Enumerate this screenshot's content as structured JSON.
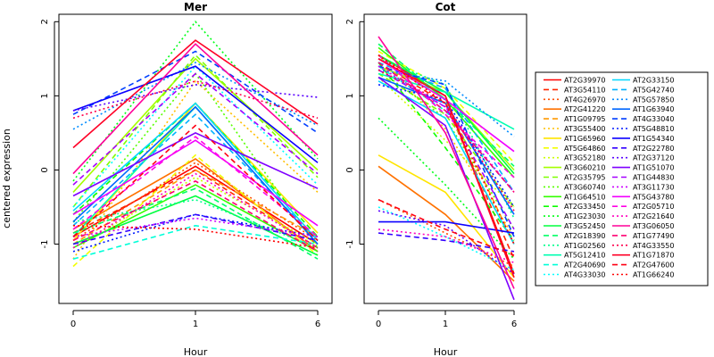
{
  "chart_data": [
    {
      "type": "line",
      "title": "Mer",
      "xlabel": "Hour",
      "ylabel": "centered expression",
      "categories": [
        "0",
        "1",
        "6"
      ],
      "ylim": [
        -1.8,
        2.1
      ],
      "yticks": [
        -1,
        0,
        1,
        2
      ],
      "series": [
        {
          "name": "AT2G39970",
          "values": [
            -0.9,
            0.05,
            -1.0
          ]
        },
        {
          "name": "AT3G54110",
          "values": [
            -0.85,
            0.0,
            -1.05
          ]
        },
        {
          "name": "AT4G26970",
          "values": [
            -0.95,
            0.1,
            -0.95
          ]
        },
        {
          "name": "AT2G41220",
          "values": [
            -0.8,
            0.15,
            -1.1
          ]
        },
        {
          "name": "AT1G09795",
          "values": [
            -1.0,
            0.0,
            -0.9
          ]
        },
        {
          "name": "AT3G55400",
          "values": [
            -1.2,
            1.2,
            -0.3
          ]
        },
        {
          "name": "AT1G65960",
          "values": [
            -0.95,
            0.9,
            -0.85
          ]
        },
        {
          "name": "AT5G64860",
          "values": [
            -1.3,
            0.2,
            -1.15
          ]
        },
        {
          "name": "AT3G52180",
          "values": [
            -1.05,
            -0.1,
            -1.0
          ]
        },
        {
          "name": "AT3G60210",
          "values": [
            -0.3,
            1.5,
            0.0
          ]
        },
        {
          "name": "AT2G35795",
          "values": [
            -0.5,
            1.55,
            -0.1
          ]
        },
        {
          "name": "AT3G60740",
          "values": [
            -0.7,
            1.3,
            -1.05
          ]
        },
        {
          "name": "AT1G64510",
          "values": [
            -1.05,
            -0.2,
            -1.1
          ]
        },
        {
          "name": "AT2G33450",
          "values": [
            -0.6,
            0.9,
            -0.9
          ]
        },
        {
          "name": "AT1G23030",
          "values": [
            -0.15,
            2.0,
            0.15
          ]
        },
        {
          "name": "AT3G52450",
          "values": [
            -1.0,
            -0.35,
            -1.15
          ]
        },
        {
          "name": "AT2G18390",
          "values": [
            -0.85,
            -0.25,
            -1.2
          ]
        },
        {
          "name": "AT1G02560",
          "values": [
            -0.7,
            -0.4,
            -1.05
          ]
        },
        {
          "name": "AT5G12410",
          "values": [
            -0.9,
            0.85,
            -1.0
          ]
        },
        {
          "name": "AT2G40690",
          "values": [
            -1.2,
            -0.75,
            -1.0
          ]
        },
        {
          "name": "AT4G33030",
          "values": [
            -0.5,
            1.4,
            -0.2
          ]
        },
        {
          "name": "AT2G33150",
          "values": [
            -0.55,
            0.9,
            -0.95
          ]
        },
        {
          "name": "AT5G42740",
          "values": [
            -0.75,
            0.75,
            -0.95
          ]
        },
        {
          "name": "AT5G57850",
          "values": [
            0.55,
            1.45,
            0.6
          ]
        },
        {
          "name": "AT1G63940",
          "values": [
            -0.7,
            0.85,
            -1.0
          ]
        },
        {
          "name": "AT4G33040",
          "values": [
            0.75,
            1.6,
            0.5
          ]
        },
        {
          "name": "AT5G48810",
          "values": [
            -1.1,
            -0.6,
            -0.9
          ]
        },
        {
          "name": "AT1G54340",
          "values": [
            0.8,
            1.4,
            0.1
          ]
        },
        {
          "name": "AT2G22780",
          "values": [
            -1.0,
            -0.6,
            -0.95
          ]
        },
        {
          "name": "AT2G37120",
          "values": [
            0.8,
            1.15,
            0.98
          ]
        },
        {
          "name": "AT1G51070",
          "values": [
            -0.35,
            0.5,
            -0.25
          ]
        },
        {
          "name": "AT1G44830",
          "values": [
            -0.2,
            1.3,
            -0.05
          ]
        },
        {
          "name": "AT3G11730",
          "values": [
            -0.9,
            -0.65,
            -0.9
          ]
        },
        {
          "name": "AT5G43780",
          "values": [
            -0.6,
            0.4,
            -0.75
          ]
        },
        {
          "name": "AT2G05710",
          "values": [
            -0.8,
            0.45,
            -0.9
          ]
        },
        {
          "name": "AT2G21640",
          "values": [
            -1.05,
            -0.05,
            -1.05
          ]
        },
        {
          "name": "AT3G06050",
          "values": [
            -0.05,
            1.7,
            0.2
          ]
        },
        {
          "name": "AT1G77490",
          "values": [
            -0.95,
            -0.15,
            -1.1
          ]
        },
        {
          "name": "AT4G33550",
          "values": [
            0.7,
            1.2,
            0.7
          ]
        },
        {
          "name": "AT1G71870",
          "values": [
            0.3,
            1.75,
            0.62
          ]
        },
        {
          "name": "AT2G47600",
          "values": [
            -0.9,
            0.6,
            -0.95
          ]
        },
        {
          "name": "AT1G66240",
          "values": [
            -0.75,
            -0.8,
            -1.05
          ]
        }
      ]
    },
    {
      "type": "line",
      "title": "Cot",
      "xlabel": "Hour",
      "categories": [
        "0",
        "1",
        "6"
      ],
      "ylim": [
        -1.8,
        2.1
      ],
      "yticks": [
        -1,
        0,
        1,
        2
      ],
      "series": [
        {
          "name": "AT2G39970",
          "values": [
            1.55,
            1.0,
            -1.4
          ]
        },
        {
          "name": "AT3G54110",
          "values": [
            1.45,
            0.9,
            -1.2
          ]
        },
        {
          "name": "AT4G26970",
          "values": [
            -0.4,
            -0.85,
            -1.3
          ]
        },
        {
          "name": "AT2G41220",
          "values": [
            0.05,
            -0.6,
            -1.5
          ]
        },
        {
          "name": "AT1G09795",
          "values": [
            1.5,
            0.95,
            -1.0
          ]
        },
        {
          "name": "AT3G55400",
          "values": [
            1.55,
            0.55,
            -0.9
          ]
        },
        {
          "name": "AT1G65960",
          "values": [
            0.2,
            -0.3,
            -1.45
          ]
        },
        {
          "name": "AT5G64860",
          "values": [
            1.6,
            1.1,
            0.1
          ]
        },
        {
          "name": "AT3G52180",
          "values": [
            1.25,
            0.4,
            -0.5
          ]
        },
        {
          "name": "AT3G60210",
          "values": [
            1.4,
            1.05,
            0.0
          ]
        },
        {
          "name": "AT2G35795",
          "values": [
            1.3,
            0.75,
            -0.5
          ]
        },
        {
          "name": "AT3G60740",
          "values": [
            1.35,
            0.7,
            -0.8
          ]
        },
        {
          "name": "AT1G64510",
          "values": [
            1.65,
            0.95,
            -0.1
          ]
        },
        {
          "name": "AT2G33450",
          "values": [
            1.45,
            0.3,
            -0.95
          ]
        },
        {
          "name": "AT1G23030",
          "values": [
            0.7,
            -0.2,
            -1.2
          ]
        },
        {
          "name": "AT3G52450",
          "values": [
            1.55,
            1.05,
            -0.05
          ]
        },
        {
          "name": "AT2G18390",
          "values": [
            1.7,
            0.95,
            0.05
          ]
        },
        {
          "name": "AT1G02560",
          "values": [
            1.5,
            1.15,
            -0.65
          ]
        },
        {
          "name": "AT5G12410",
          "values": [
            1.3,
            1.05,
            0.55
          ]
        },
        {
          "name": "AT2G40690",
          "values": [
            1.4,
            0.8,
            -0.3
          ]
        },
        {
          "name": "AT4G33030",
          "values": [
            -0.5,
            -0.9,
            -1.35
          ]
        },
        {
          "name": "AT2G33150",
          "values": [
            1.2,
            0.7,
            -1.0
          ]
        },
        {
          "name": "AT5G42740",
          "values": [
            1.45,
            1.1,
            -0.3
          ]
        },
        {
          "name": "AT5G57850",
          "values": [
            1.35,
            1.2,
            0.45
          ]
        },
        {
          "name": "AT1G63940",
          "values": [
            1.25,
            0.9,
            -0.6
          ]
        },
        {
          "name": "AT4G33040",
          "values": [
            1.4,
            1.15,
            -0.9
          ]
        },
        {
          "name": "AT5G48810",
          "values": [
            1.15,
            0.95,
            -0.5
          ]
        },
        {
          "name": "AT1G54340",
          "values": [
            -0.7,
            -0.7,
            -0.85
          ]
        },
        {
          "name": "AT2G22780",
          "values": [
            -0.85,
            -0.95,
            -1.1
          ]
        },
        {
          "name": "AT2G37120",
          "values": [
            -0.55,
            -0.75,
            -1.4
          ]
        },
        {
          "name": "AT1G51070",
          "values": [
            1.25,
            0.6,
            -1.75
          ]
        },
        {
          "name": "AT1G44830",
          "values": [
            1.35,
            0.85,
            -0.8
          ]
        },
        {
          "name": "AT3G11730",
          "values": [
            1.4,
            0.85,
            -0.3
          ]
        },
        {
          "name": "AT5G43780",
          "values": [
            1.5,
            0.95,
            0.25
          ]
        },
        {
          "name": "AT2G05710",
          "values": [
            1.55,
            0.75,
            -0.1
          ]
        },
        {
          "name": "AT2G21640",
          "values": [
            -0.8,
            -0.9,
            -1.25
          ]
        },
        {
          "name": "AT3G06050",
          "values": [
            1.8,
            0.5,
            -1.6
          ]
        },
        {
          "name": "AT1G77490",
          "values": [
            1.45,
            0.8,
            -0.3
          ]
        },
        {
          "name": "AT4G33550",
          "values": [
            1.35,
            0.9,
            -0.55
          ]
        },
        {
          "name": "AT1G71870",
          "values": [
            1.5,
            1.0,
            -1.45
          ]
        },
        {
          "name": "AT2G47600",
          "values": [
            -0.4,
            -0.8,
            -1.15
          ]
        },
        {
          "name": "AT1G66240",
          "values": [
            1.55,
            0.9,
            -1.0
          ]
        }
      ]
    }
  ],
  "shared_ylabel": "centered expression",
  "legend": {
    "placement": "right",
    "columns": [
      [
        {
          "name": "AT2G39970",
          "color": "#FF0000",
          "dash": "solid"
        },
        {
          "name": "AT3G54110",
          "color": "#FF2600",
          "dash": "dashed"
        },
        {
          "name": "AT4G26970",
          "color": "#FF4C00",
          "dash": "dotted"
        },
        {
          "name": "AT2G41220",
          "color": "#FF7200",
          "dash": "solid"
        },
        {
          "name": "AT1G09795",
          "color": "#FF9900",
          "dash": "dashed"
        },
        {
          "name": "AT3G55400",
          "color": "#FFBF00",
          "dash": "dotted"
        },
        {
          "name": "AT1G65960",
          "color": "#FFE500",
          "dash": "solid"
        },
        {
          "name": "AT5G64860",
          "color": "#F2FF00",
          "dash": "dashed"
        },
        {
          "name": "AT3G52180",
          "color": "#CCFF00",
          "dash": "dotted"
        },
        {
          "name": "AT3G60210",
          "color": "#A5FF00",
          "dash": "solid"
        },
        {
          "name": "AT2G35795",
          "color": "#7FFF00",
          "dash": "dashed"
        },
        {
          "name": "AT3G60740",
          "color": "#59FF00",
          "dash": "dotted"
        },
        {
          "name": "AT1G64510",
          "color": "#33FF00",
          "dash": "solid"
        },
        {
          "name": "AT2G33450",
          "color": "#0CFF00",
          "dash": "dashed"
        },
        {
          "name": "AT1G23030",
          "color": "#00FF19",
          "dash": "dotted"
        },
        {
          "name": "AT3G52450",
          "color": "#00FF3F",
          "dash": "solid"
        },
        {
          "name": "AT2G18390",
          "color": "#00FF66",
          "dash": "dashed"
        },
        {
          "name": "AT1G02560",
          "color": "#00FF8C",
          "dash": "dotted"
        },
        {
          "name": "AT5G12410",
          "color": "#00FFB2",
          "dash": "solid"
        },
        {
          "name": "AT2G40690",
          "color": "#00FFD8",
          "dash": "dashed"
        },
        {
          "name": "AT4G33030",
          "color": "#00FFFF",
          "dash": "dotted"
        }
      ],
      [
        {
          "name": "AT2G33150",
          "color": "#00D8FF",
          "dash": "solid"
        },
        {
          "name": "AT5G42740",
          "color": "#00B2FF",
          "dash": "dashed"
        },
        {
          "name": "AT5G57850",
          "color": "#008CFF",
          "dash": "dotted"
        },
        {
          "name": "AT1G63940",
          "color": "#0066FF",
          "dash": "solid"
        },
        {
          "name": "AT4G33040",
          "color": "#003FFF",
          "dash": "dashed"
        },
        {
          "name": "AT5G48810",
          "color": "#0019FF",
          "dash": "dotted"
        },
        {
          "name": "AT1G54340",
          "color": "#0C00FF",
          "dash": "solid"
        },
        {
          "name": "AT2G22780",
          "color": "#3200FF",
          "dash": "dashed"
        },
        {
          "name": "AT2G37120",
          "color": "#5900FF",
          "dash": "dotted"
        },
        {
          "name": "AT1G51070",
          "color": "#7F00FF",
          "dash": "solid"
        },
        {
          "name": "AT1G44830",
          "color": "#A500FF",
          "dash": "dashed"
        },
        {
          "name": "AT3G11730",
          "color": "#CB00FF",
          "dash": "dotted"
        },
        {
          "name": "AT5G43780",
          "color": "#F200FF",
          "dash": "solid"
        },
        {
          "name": "AT2G05710",
          "color": "#FF00E5",
          "dash": "dashed"
        },
        {
          "name": "AT2G21640",
          "color": "#FF00BF",
          "dash": "dotted"
        },
        {
          "name": "AT3G06050",
          "color": "#FF0099",
          "dash": "solid"
        },
        {
          "name": "AT1G77490",
          "color": "#FF0072",
          "dash": "dashed"
        },
        {
          "name": "AT4G33550",
          "color": "#FF004C",
          "dash": "dotted"
        },
        {
          "name": "AT1G71870",
          "color": "#FF0026",
          "dash": "solid"
        },
        {
          "name": "AT2G47600",
          "color": "#FF0013",
          "dash": "dashed"
        },
        {
          "name": "AT1G66240",
          "color": "#FF0000",
          "dash": "dotted"
        }
      ]
    ]
  }
}
